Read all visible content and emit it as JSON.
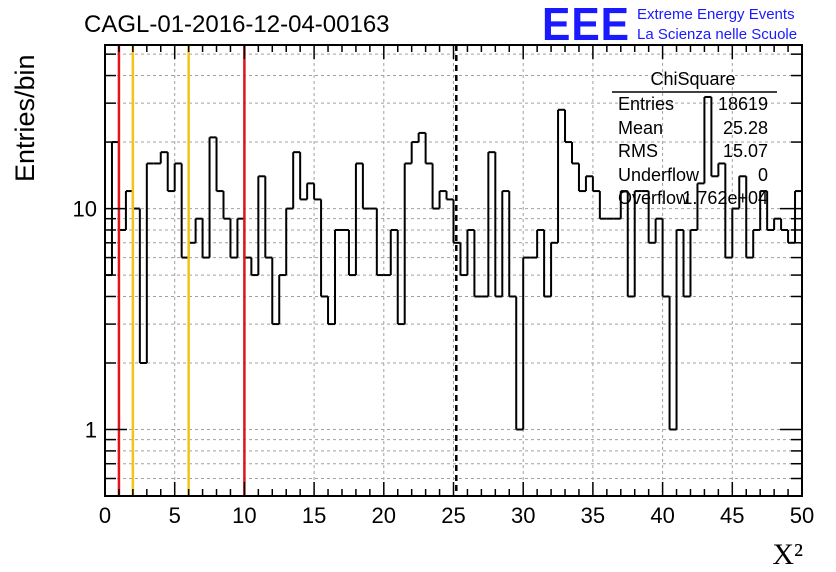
{
  "chart_data": {
    "type": "histogram",
    "title": "CAGL-01-2016-12-04-00163",
    "xlabel": "X²",
    "ylabel": "Entries/bin",
    "y_scale": "log",
    "xlim": [
      0,
      50
    ],
    "ylim": [
      0.5,
      55
    ],
    "x_ticks": [
      "0",
      "5",
      "10",
      "15",
      "20",
      "25",
      "30",
      "35",
      "40",
      "45",
      "50"
    ],
    "y_ticks": [
      "1",
      "10"
    ],
    "grid": true,
    "bin_width": 0.5,
    "bin_values": [
      5,
      20,
      8,
      12,
      10,
      2,
      16,
      16,
      18,
      12,
      16,
      6,
      7,
      9,
      6,
      21,
      12,
      9,
      6,
      9,
      6,
      5,
      14,
      6,
      3,
      5,
      10,
      18,
      11,
      13,
      11,
      4,
      3,
      8,
      8,
      5,
      16,
      10,
      10,
      5,
      5,
      8,
      3,
      16,
      20,
      22,
      16,
      10,
      12,
      11,
      7,
      5,
      8,
      4,
      4,
      18,
      4,
      12,
      4,
      1,
      6,
      6,
      8,
      4,
      7,
      28,
      20,
      16,
      12,
      14,
      12,
      9,
      9,
      9,
      12,
      4,
      12,
      12,
      7,
      9,
      4,
      1,
      8,
      4,
      8,
      13,
      32,
      14,
      16,
      6,
      10,
      14,
      6,
      8,
      12,
      8,
      9,
      8,
      7,
      12
    ],
    "vertical_lines": [
      {
        "x": 1,
        "color": "#e0151b",
        "style": "solid"
      },
      {
        "x": 2,
        "color": "#f2c318",
        "style": "solid"
      },
      {
        "x": 6,
        "color": "#f2c318",
        "style": "solid"
      },
      {
        "x": 10,
        "color": "#e0151b",
        "style": "solid"
      },
      {
        "x": 25.2,
        "color": "#000000",
        "style": "dashed"
      }
    ],
    "stats_box": {
      "title": "ChiSquare",
      "rows": [
        {
          "label": "Entries",
          "value": "18619"
        },
        {
          "label": "Mean",
          "value": "25.28"
        },
        {
          "label": "RMS",
          "value": "15.07"
        },
        {
          "label": "Underflow",
          "value": "0"
        },
        {
          "label": "Overflow",
          "value": "1.762e+04"
        }
      ]
    }
  },
  "logo": {
    "mark": "EEE",
    "line1": "Extreme Energy Events",
    "line2": "La Scienza nelle Scuole"
  },
  "colors": {
    "histogram": "#000000",
    "grid": "#a0a0a0",
    "red_line": "#e0151b",
    "yellow_line": "#f2c318",
    "logo_blue": "#1a1aff"
  }
}
